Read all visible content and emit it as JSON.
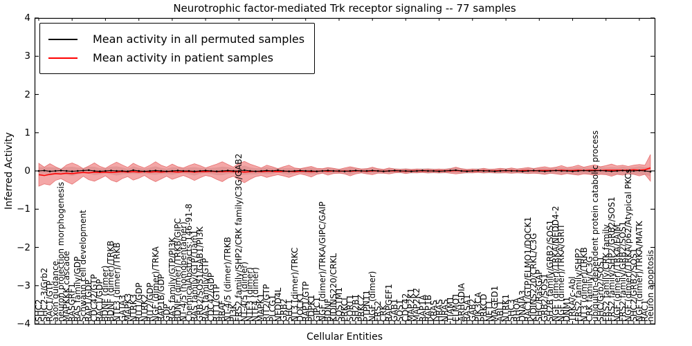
{
  "chart_data": {
    "type": "line",
    "title": "Neurotrophic factor-mediated Trk receptor signaling -- 77 samples",
    "xlabel": "Cellular Entities",
    "ylabel": "Inferred Activity",
    "ylim": [
      -4,
      4
    ],
    "y_ticks": [
      -4,
      -3,
      -2,
      -1,
      0,
      1,
      2,
      3,
      4
    ],
    "grid": false,
    "legend_position": "upper left",
    "colors": {
      "permuted_line": "#000000",
      "patient_line": "#ff0000",
      "patient_band_fill": "rgba(230,60,60,0.45)",
      "patient_band_edge": "rgba(215,40,40,0.55)",
      "permuted_band_fill": "rgba(60,60,60,0.16)"
    },
    "categories": [
      "SHC2",
      "SHC2-3/Grb2",
      "RAC1/GTP",
      "axon guidance",
      "neuron projection morphogenesis",
      "MAPKKK cascade",
      "RASGRF1",
      "RAS family/GDP",
      "Schwann cell development",
      "RAP1/GDP",
      "CDC42/GTP",
      "RAC1/GDP",
      "BDNF (dimer)",
      "BDNF (dimer)/TRKB",
      "NTF3 (dimer)/TRKB",
      "GATA3",
      "MAPK3",
      "NTRK3",
      "RIT1/GDP",
      "NTRK2",
      "RIT2/GDP",
      "NGF (dimer)/TRKA",
      "RAP1B/GDP",
      "GDP",
      "RAS family/GTP/PI3K",
      "BDNF (dimer)/TRKB/GIPC",
      "NT-4/5 (homopentamer)",
      "ChemicalAbstracts:146-91-8",
      "RAS family/GTP/Tiam1",
      "GRB2/SOS1/GAB1/PI3K",
      "RAS family/GTP",
      "CDC42/GDP",
      "RIT1/GTP",
      "BRAF",
      "NT-4/5 (dimer)/TRKB",
      "PI3K",
      "FRS2 family/SHP2/CRK family/C3G/GAB2",
      "NT-4/5 (dimer)",
      "NTF3 (dimer)",
      "NTF4 (dimer)",
      "MAPK1",
      "RIT2/GTP",
      "PLCG1",
      "NEDD4L",
      "GRB2",
      "SHC1",
      "NT3 (dimer)/TRKC",
      "DOCK1",
      "RAP1/GTP",
      "PDPK1",
      "GIPC1",
      "NGF (dimer)/TRKA/GIPC/GAIP",
      "BDNF",
      "KIDINS220/CRKL",
      "SQSTM1",
      "PRKCI",
      "SORT1",
      "SH2B1",
      "PRKCZ",
      "PTPN11",
      "NGF (dimer)",
      "FRS2",
      "CRK",
      "RAPGEF1",
      "GAB1",
      "SOS1",
      "CDC42",
      "MAP2K1",
      "MAP2K2",
      "RAP1A",
      "RAP1B",
      "KRAS",
      "HRAS",
      "NRAS",
      "TIAM1",
      "ELMO1",
      "ARHGDIA",
      "RASA1",
      "GAB2",
      "PIK3CA",
      "PRKCD",
      "NET1",
      "MAGED1",
      "ABL1",
      "NTRK1",
      "SHC3",
      "RHOA",
      "DNAJA3",
      "RAC1/GTP/ELMO1/DOCK1",
      "KIDINS220/CRKL/C3G",
      "SHC/RasGAP",
      "GRB2/SOS1",
      "SH2B family/GRB2/SOS1",
      "NGF (dimer)/TRKA/NEDD4-2",
      "NGF (dimer)/TRKA/GRIT",
      "DNM1",
      "TRKA/c-Abl",
      "FRS2 family/SHP2",
      "NT3 (dimer)/TRKB",
      "CRK family/C3G",
      "ubiquitin-dependent protein catabolic process",
      "SHC/Grb2/SOS1",
      "FRS2 family/CRK family",
      "FRS2 family/SHP2/GRB2/SOS1",
      "NGF (dimer)/TRKA/FAIM",
      "FRS2 family/GRB2/SOS1",
      "NGF (dimer)/TRKA/p62/Atypical PKCs",
      "SHC2/GRB2/SOS1",
      "NGF (dimer)/TRKA/MATK",
      "RAC1",
      "neuron apoptosis"
    ],
    "series": [
      {
        "name": "Mean activity in all permuted samples",
        "color": "#000000",
        "marker": "dot",
        "mean": [
          0.0,
          0.01,
          -0.01,
          0.0,
          0.01,
          0.0,
          -0.01,
          0.0,
          0.01,
          0.02,
          0.0,
          -0.01,
          0.0,
          0.01,
          0.0,
          0.0,
          -0.01,
          0.02,
          0.0,
          -0.01,
          0.0,
          0.01,
          0.0,
          -0.01,
          0.0,
          0.01,
          0.0,
          0.0,
          -0.01,
          0.0,
          0.01,
          0.0,
          -0.01,
          0.0,
          0.01,
          0.0,
          0.0,
          0.02,
          0.0,
          -0.01,
          0.0,
          0.01,
          0.0,
          0.02,
          0.0,
          -0.01,
          0.0,
          0.01,
          0.0,
          0.0,
          -0.01,
          0.0,
          0.01,
          0.0,
          0.0,
          -0.01,
          0.0,
          0.01,
          0.0,
          0.0,
          0.01,
          0.0,
          -0.01,
          0.0,
          0.01,
          0.0,
          0.0,
          -0.01,
          0.0,
          0.01,
          0.0,
          0.0,
          -0.01,
          0.0,
          0.01,
          0.02,
          0.0,
          -0.01,
          0.0,
          0.01,
          0.0,
          0.0,
          -0.01,
          0.0,
          0.01,
          0.0,
          0.0,
          -0.01,
          0.0,
          0.01,
          0.0,
          -0.01,
          0.0,
          0.01,
          0.0,
          0.0,
          -0.01,
          0.0,
          0.01,
          0.0,
          0.0,
          0.01,
          0.0,
          -0.01,
          0.0,
          0.01,
          0.0,
          0.0,
          0.01,
          0.0,
          -0.02
        ],
        "band_half_width": [
          0.1,
          0.08,
          0.11,
          0.09,
          0.07,
          0.1,
          0.12,
          0.09,
          0.07,
          0.09,
          0.11,
          0.08,
          0.07,
          0.1,
          0.12,
          0.09,
          0.07,
          0.1,
          0.08,
          0.07,
          0.09,
          0.11,
          0.08,
          0.07,
          0.1,
          0.08,
          0.07,
          0.09,
          0.11,
          0.08,
          0.07,
          0.08,
          0.1,
          0.11,
          0.09,
          0.07,
          0.1,
          0.12,
          0.09,
          0.08,
          0.07,
          0.09,
          0.08,
          0.06,
          0.08,
          0.09,
          0.07,
          0.06,
          0.08,
          0.09,
          0.07,
          0.06,
          0.08,
          0.07,
          0.06,
          0.07,
          0.09,
          0.07,
          0.06,
          0.07,
          0.08,
          0.06,
          0.06,
          0.07,
          0.06,
          0.06,
          0.07,
          0.06,
          0.06,
          0.06,
          0.07,
          0.06,
          0.06,
          0.06,
          0.07,
          0.08,
          0.07,
          0.06,
          0.06,
          0.06,
          0.07,
          0.06,
          0.06,
          0.07,
          0.06,
          0.07,
          0.06,
          0.07,
          0.08,
          0.07,
          0.08,
          0.09,
          0.07,
          0.08,
          0.09,
          0.08,
          0.09,
          0.1,
          0.08,
          0.09,
          0.1,
          0.09,
          0.09,
          0.11,
          0.09,
          0.1,
          0.09,
          0.1,
          0.11,
          0.1,
          0.12
        ]
      },
      {
        "name": "Mean activity in patient samples",
        "color": "#ff0000",
        "marker": "none",
        "mean": [
          -0.1,
          -0.12,
          -0.09,
          -0.07,
          -0.08,
          -0.06,
          -0.07,
          -0.05,
          -0.04,
          -0.05,
          -0.03,
          -0.04,
          -0.03,
          -0.04,
          -0.03,
          -0.02,
          -0.03,
          -0.02,
          -0.03,
          -0.02,
          -0.03,
          -0.02,
          -0.03,
          -0.02,
          -0.02,
          -0.03,
          -0.02,
          -0.02,
          -0.03,
          -0.02,
          -0.02,
          -0.01,
          -0.02,
          -0.02,
          -0.01,
          -0.02,
          -0.02,
          -0.03,
          -0.02,
          -0.01,
          -0.02,
          -0.01,
          -0.01,
          -0.02,
          -0.01,
          -0.01,
          -0.02,
          -0.01,
          -0.01,
          -0.02,
          -0.01,
          0.0,
          -0.01,
          0.0,
          -0.01,
          0.0,
          -0.01,
          0.0,
          0.0,
          -0.01,
          0.0,
          0.0,
          -0.01,
          0.0,
          0.0,
          0.0,
          -0.01,
          0.0,
          0.0,
          0.0,
          0.0,
          0.0,
          0.0,
          0.0,
          0.0,
          0.01,
          0.0,
          0.0,
          0.0,
          0.0,
          0.01,
          0.0,
          0.0,
          0.01,
          0.0,
          0.01,
          0.0,
          0.01,
          0.01,
          0.0,
          0.01,
          0.01,
          0.01,
          0.01,
          0.02,
          0.01,
          0.01,
          0.02,
          0.01,
          0.02,
          0.02,
          0.01,
          0.02,
          0.02,
          0.02,
          0.02,
          0.02,
          0.03,
          0.02,
          0.03,
          0.08
        ],
        "band_half_width": [
          0.3,
          0.22,
          0.28,
          0.18,
          0.12,
          0.22,
          0.28,
          0.2,
          0.1,
          0.18,
          0.24,
          0.16,
          0.1,
          0.2,
          0.26,
          0.18,
          0.12,
          0.22,
          0.16,
          0.1,
          0.18,
          0.26,
          0.18,
          0.12,
          0.2,
          0.14,
          0.1,
          0.16,
          0.22,
          0.16,
          0.1,
          0.14,
          0.2,
          0.26,
          0.18,
          0.12,
          0.22,
          0.28,
          0.2,
          0.14,
          0.1,
          0.16,
          0.12,
          0.08,
          0.12,
          0.16,
          0.1,
          0.07,
          0.1,
          0.14,
          0.08,
          0.06,
          0.1,
          0.07,
          0.05,
          0.08,
          0.12,
          0.08,
          0.05,
          0.07,
          0.1,
          0.06,
          0.05,
          0.08,
          0.05,
          0.04,
          0.06,
          0.04,
          0.05,
          0.04,
          0.05,
          0.04,
          0.05,
          0.04,
          0.06,
          0.09,
          0.06,
          0.04,
          0.05,
          0.04,
          0.06,
          0.04,
          0.05,
          0.06,
          0.05,
          0.07,
          0.05,
          0.06,
          0.08,
          0.06,
          0.08,
          0.1,
          0.07,
          0.09,
          0.12,
          0.08,
          0.1,
          0.13,
          0.09,
          0.11,
          0.14,
          0.1,
          0.12,
          0.16,
          0.11,
          0.13,
          0.1,
          0.12,
          0.15,
          0.12,
          0.35
        ]
      }
    ]
  }
}
